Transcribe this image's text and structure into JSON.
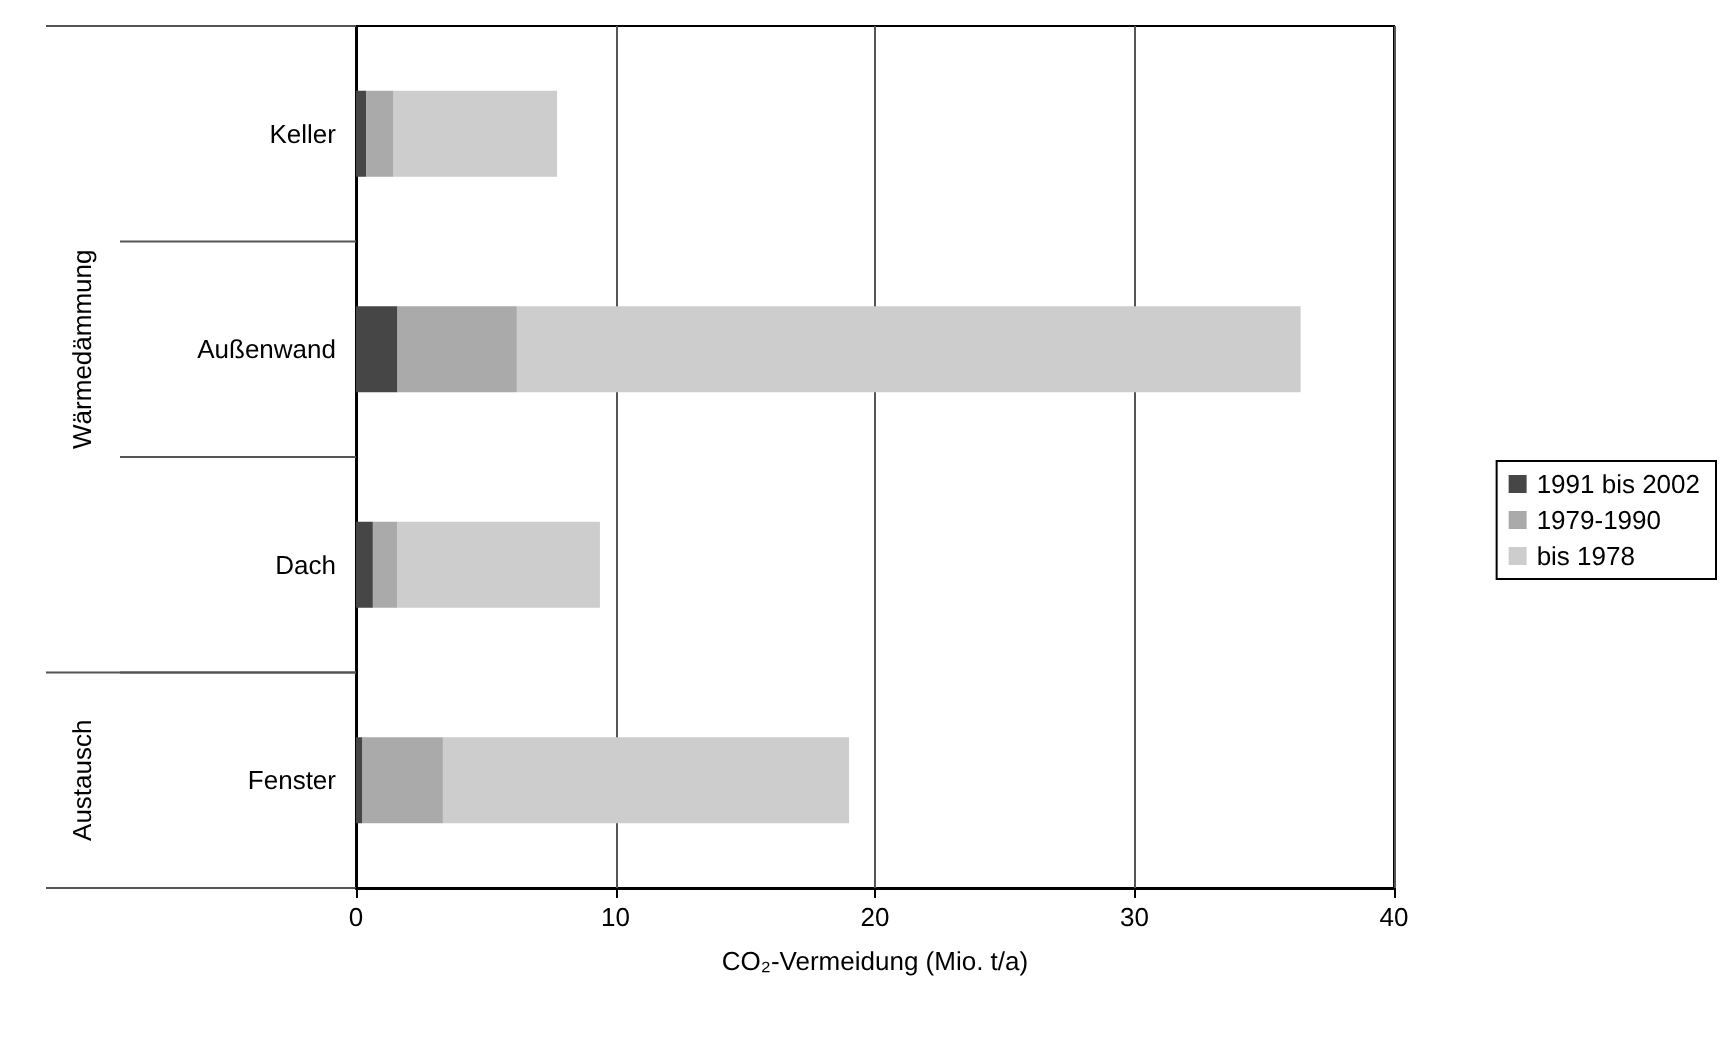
{
  "chart_data": {
    "type": "bar",
    "orientation": "horizontal",
    "stacked": true,
    "categories": [
      "Keller",
      "Außenwand",
      "Dach",
      "Fenster"
    ],
    "series": [
      {
        "name": "1991 bis 2002",
        "color": "#464646",
        "values": [
          0.4,
          1.6,
          0.65,
          0.25
        ]
      },
      {
        "name": "1979-1990",
        "color": "#aaaaaa",
        "values": [
          1.05,
          4.6,
          0.95,
          3.1
        ]
      },
      {
        "name": "bis 1978",
        "color": "#cdcdcd",
        "values": [
          6.3,
          30.2,
          7.8,
          15.65
        ]
      }
    ],
    "xlim": [
      0,
      40
    ],
    "xticks": [
      0,
      10,
      20,
      30,
      40
    ],
    "xlabel": "CO₂-Vermeidung (Mio. t/a)",
    "annotations": [
      "Wärmedämmung",
      "Austausch"
    ],
    "grid": "x",
    "legend": "right"
  }
}
